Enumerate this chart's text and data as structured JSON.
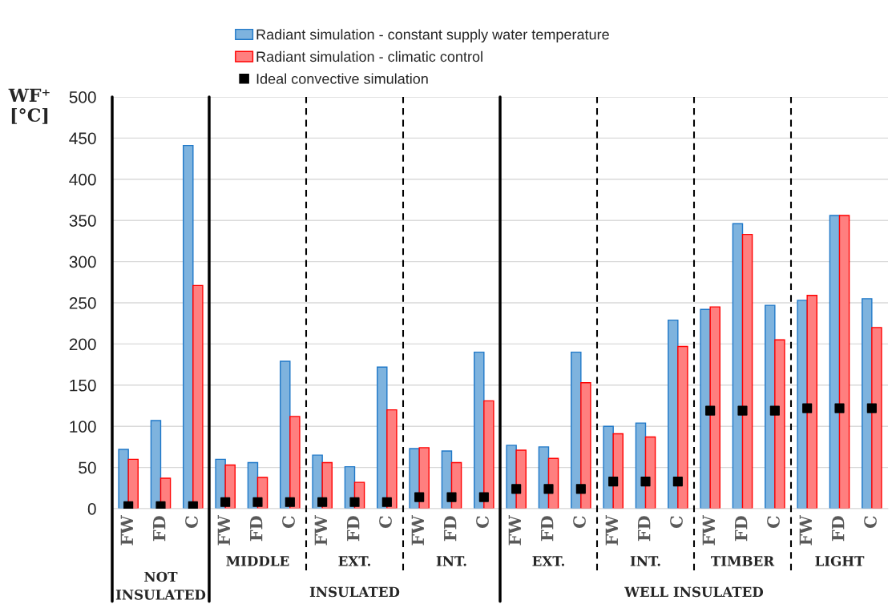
{
  "chart_data": {
    "type": "bar",
    "ylabel": "WF⁺\n[°C]",
    "categories": [
      "FW",
      "FD",
      "C",
      "FW",
      "FD",
      "C",
      "FW",
      "FD",
      "C",
      "FW",
      "FD",
      "C",
      "FW",
      "FD",
      "C",
      "FW",
      "FD",
      "C",
      "FW",
      "FD",
      "C",
      "FW",
      "FD",
      "C"
    ],
    "series": [
      {
        "name": "Radiant simulation - constant supply water temperature",
        "color": "#7eb3de",
        "values": [
          72,
          107,
          441,
          60,
          56,
          179,
          65,
          51,
          172,
          73,
          70,
          190,
          77,
          75,
          190,
          100,
          104,
          229,
          242,
          346,
          247,
          253,
          356,
          255
        ]
      },
      {
        "name": "Radiant simulation - climatic control",
        "color": "#ff7f7f",
        "values": [
          60,
          37,
          271,
          53,
          38,
          112,
          56,
          32,
          120,
          74,
          56,
          131,
          71,
          61,
          153,
          91,
          87,
          197,
          245,
          333,
          205,
          259,
          356,
          220
        ]
      },
      {
        "name": "Ideal convective simulation",
        "color": "#000000",
        "type": "scatter",
        "marker": "square",
        "values": [
          3,
          3,
          3,
          8,
          8,
          8,
          8,
          8,
          8,
          14,
          14,
          14,
          24,
          24,
          24,
          33,
          33,
          33,
          119,
          119,
          119,
          122,
          122,
          122
        ]
      }
    ],
    "ylim": [
      0,
      500
    ],
    "yticks": [
      0,
      50,
      100,
      150,
      200,
      250,
      300,
      350,
      400,
      450,
      500
    ],
    "grid": "y",
    "legend": "top",
    "annotations": [
      "NOT\nINSULATED",
      "MIDDLE",
      "EXT.",
      "INT.",
      "INSULATED",
      "EXT.",
      "INT.",
      "TIMBER",
      "LIGHT",
      "WELL INSULATED"
    ]
  }
}
